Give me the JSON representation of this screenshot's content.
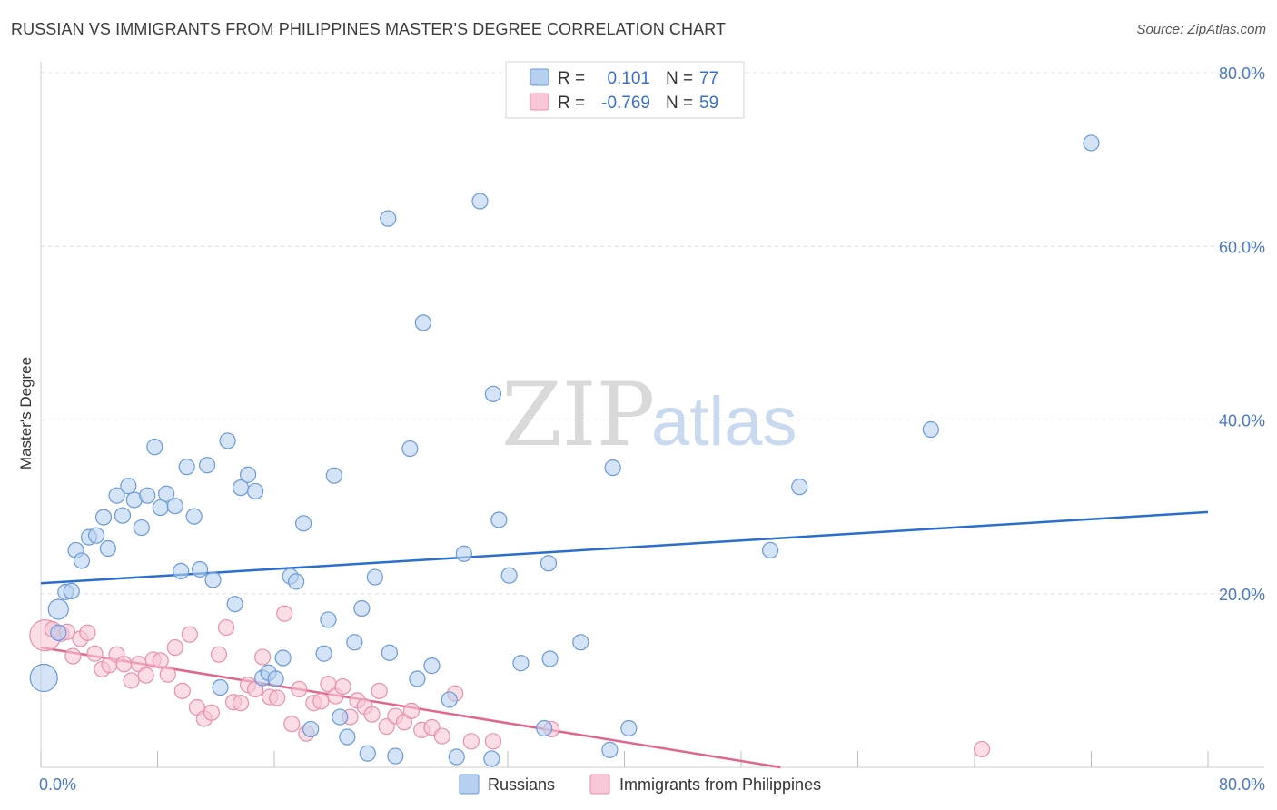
{
  "title": "RUSSIAN VS IMMIGRANTS FROM PHILIPPINES MASTER'S DEGREE CORRELATION CHART",
  "source": "Source: ZipAtlas.com",
  "watermark": {
    "part1": "ZIP",
    "part2": "atlas"
  },
  "colors": {
    "russians_fill": "#b8d0f0",
    "russians_stroke": "#6a9ad8",
    "russians_line": "#2a6ecf",
    "philippines_fill": "#f8c6d6",
    "philippines_stroke": "#e890ac",
    "philippines_line": "#e0668e",
    "grid": "#dddddd",
    "tick_text": "#4a78c8"
  },
  "legend": {
    "rows": [
      {
        "r_label": "R =",
        "r_value": "0.101",
        "n_label": "N =",
        "n_value": "77"
      },
      {
        "r_label": "R =",
        "r_value": "-0.769",
        "n_label": "N =",
        "n_value": "59"
      }
    ]
  },
  "chart_data": {
    "type": "scatter",
    "xlabel": "",
    "ylabel": "Master's Degree",
    "xlim": [
      0,
      80
    ],
    "ylim": [
      0,
      80
    ],
    "x_tick_labels": [
      "0.0%",
      "80.0%"
    ],
    "y_tick_labels": [
      "20.0%",
      "40.0%",
      "60.0%",
      "80.0%"
    ],
    "y_ticks": [
      20,
      40,
      60,
      80
    ],
    "series": [
      {
        "name": "Russians",
        "trend": {
          "x": [
            0,
            80
          ],
          "y": [
            21.2,
            29.4
          ]
        },
        "points": [
          [
            0.2,
            10.3
          ],
          [
            1.2,
            15.5
          ],
          [
            1.2,
            18.2
          ],
          [
            1.7,
            20.2
          ],
          [
            2.1,
            20.3
          ],
          [
            2.4,
            25.0
          ],
          [
            2.8,
            23.8
          ],
          [
            3.3,
            26.5
          ],
          [
            3.8,
            26.7
          ],
          [
            4.3,
            28.8
          ],
          [
            4.6,
            25.2
          ],
          [
            5.2,
            31.3
          ],
          [
            5.6,
            29.0
          ],
          [
            6.0,
            32.4
          ],
          [
            6.4,
            30.8
          ],
          [
            6.9,
            27.6
          ],
          [
            7.3,
            31.3
          ],
          [
            7.8,
            36.9
          ],
          [
            8.2,
            29.9
          ],
          [
            8.6,
            31.5
          ],
          [
            9.2,
            30.1
          ],
          [
            9.6,
            22.6
          ],
          [
            10.0,
            34.6
          ],
          [
            10.5,
            28.9
          ],
          [
            10.9,
            22.8
          ],
          [
            11.4,
            34.8
          ],
          [
            11.8,
            21.6
          ],
          [
            12.3,
            9.2
          ],
          [
            12.8,
            37.6
          ],
          [
            13.3,
            18.8
          ],
          [
            13.7,
            32.2
          ],
          [
            14.2,
            33.7
          ],
          [
            14.7,
            31.8
          ],
          [
            15.2,
            10.3
          ],
          [
            15.6,
            10.9
          ],
          [
            16.1,
            10.2
          ],
          [
            16.6,
            12.6
          ],
          [
            17.1,
            22.0
          ],
          [
            17.5,
            21.4
          ],
          [
            18.0,
            28.1
          ],
          [
            18.5,
            4.4
          ],
          [
            19.4,
            13.1
          ],
          [
            19.7,
            17.0
          ],
          [
            20.1,
            33.6
          ],
          [
            20.5,
            5.8
          ],
          [
            21.0,
            3.5
          ],
          [
            21.5,
            14.4
          ],
          [
            22.0,
            18.3
          ],
          [
            22.4,
            1.6
          ],
          [
            22.9,
            21.9
          ],
          [
            23.8,
            63.2
          ],
          [
            23.9,
            13.2
          ],
          [
            24.3,
            1.3
          ],
          [
            25.3,
            36.7
          ],
          [
            25.8,
            10.2
          ],
          [
            26.2,
            51.2
          ],
          [
            26.8,
            11.7
          ],
          [
            28.0,
            7.8
          ],
          [
            28.5,
            1.2
          ],
          [
            29.0,
            24.6
          ],
          [
            30.1,
            65.2
          ],
          [
            30.9,
            1.0
          ],
          [
            31.0,
            43.0
          ],
          [
            31.4,
            28.5
          ],
          [
            32.1,
            22.1
          ],
          [
            32.9,
            12.0
          ],
          [
            34.5,
            4.5
          ],
          [
            34.8,
            23.5
          ],
          [
            34.9,
            12.5
          ],
          [
            37.0,
            14.4
          ],
          [
            39.0,
            2.0
          ],
          [
            39.2,
            34.5
          ],
          [
            40.3,
            4.5
          ],
          [
            50.0,
            25.0
          ],
          [
            52.0,
            32.3
          ],
          [
            61.0,
            38.9
          ],
          [
            72.0,
            71.9
          ]
        ]
      },
      {
        "name": "Immigrants from Philippines",
        "trend": {
          "x": [
            0,
            50.7
          ],
          "y": [
            13.8,
            0
          ]
        },
        "points": [
          [
            0.3,
            15.2
          ],
          [
            0.8,
            15.9
          ],
          [
            1.4,
            15.4
          ],
          [
            1.8,
            15.6
          ],
          [
            2.2,
            12.8
          ],
          [
            2.7,
            14.8
          ],
          [
            3.2,
            15.5
          ],
          [
            3.7,
            13.1
          ],
          [
            4.2,
            11.3
          ],
          [
            4.7,
            11.8
          ],
          [
            5.2,
            13.0
          ],
          [
            5.7,
            11.9
          ],
          [
            6.2,
            10.0
          ],
          [
            6.7,
            11.9
          ],
          [
            7.2,
            10.6
          ],
          [
            7.7,
            12.4
          ],
          [
            8.2,
            12.3
          ],
          [
            8.7,
            10.7
          ],
          [
            9.2,
            13.8
          ],
          [
            9.7,
            8.8
          ],
          [
            10.2,
            15.3
          ],
          [
            10.7,
            6.9
          ],
          [
            11.2,
            5.6
          ],
          [
            11.7,
            6.3
          ],
          [
            12.2,
            13.0
          ],
          [
            12.7,
            16.1
          ],
          [
            13.2,
            7.5
          ],
          [
            13.7,
            7.4
          ],
          [
            14.2,
            9.5
          ],
          [
            14.7,
            9.0
          ],
          [
            15.2,
            12.7
          ],
          [
            15.7,
            8.1
          ],
          [
            16.2,
            8.0
          ],
          [
            16.7,
            17.7
          ],
          [
            17.2,
            5.0
          ],
          [
            17.7,
            9.0
          ],
          [
            18.2,
            3.9
          ],
          [
            18.7,
            7.4
          ],
          [
            19.2,
            7.6
          ],
          [
            19.7,
            9.6
          ],
          [
            20.2,
            8.2
          ],
          [
            20.7,
            9.3
          ],
          [
            21.2,
            5.8
          ],
          [
            21.7,
            7.7
          ],
          [
            22.2,
            7.0
          ],
          [
            22.7,
            6.1
          ],
          [
            23.2,
            8.8
          ],
          [
            23.7,
            4.7
          ],
          [
            24.3,
            5.9
          ],
          [
            24.9,
            5.2
          ],
          [
            25.4,
            6.5
          ],
          [
            26.1,
            4.3
          ],
          [
            26.8,
            4.6
          ],
          [
            27.5,
            3.6
          ],
          [
            28.4,
            8.5
          ],
          [
            29.5,
            3.0
          ],
          [
            31.0,
            3.0
          ],
          [
            35.0,
            4.4
          ],
          [
            64.5,
            2.1
          ]
        ]
      }
    ]
  },
  "bottom_legend": {
    "items": [
      "Russians",
      "Immigrants from Philippines"
    ]
  }
}
